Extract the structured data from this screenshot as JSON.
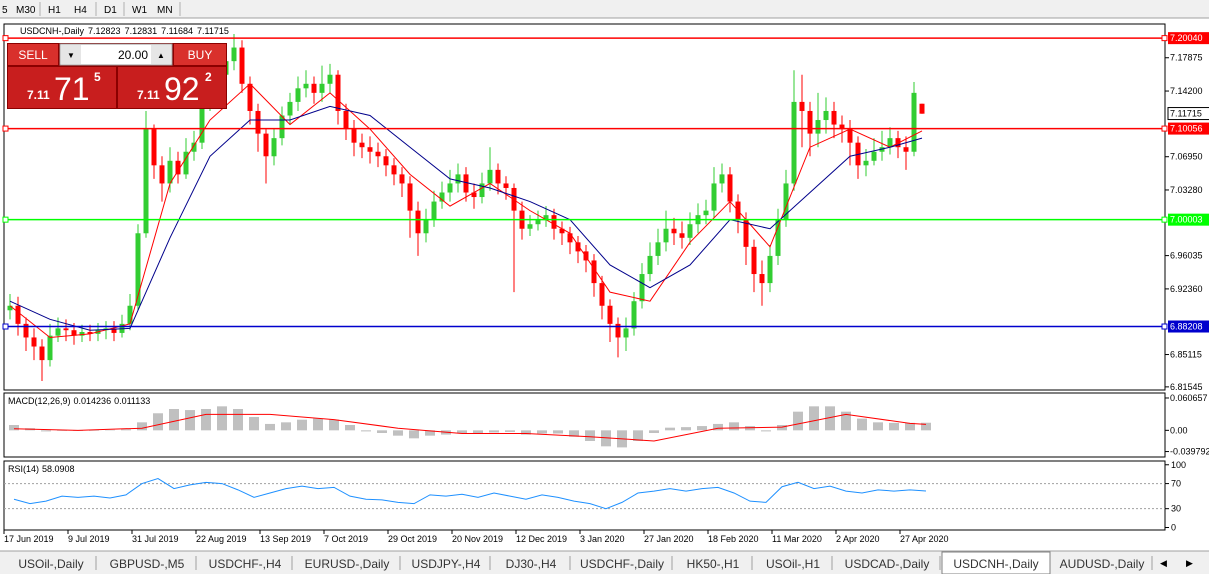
{
  "toolbar": {
    "timeframes": [
      "5",
      "M30",
      "H1",
      "H4",
      "D1",
      "W1",
      "MN"
    ]
  },
  "trade_panel": {
    "sell": "SELL",
    "buy": "BUY",
    "lots": "20.00",
    "sell_price": {
      "big_figure": "7.11",
      "pips": "71",
      "fraction": "5"
    },
    "buy_price": {
      "big_figure": "7.11",
      "pips": "92",
      "fraction": "2"
    }
  },
  "chart_data": {
    "type": "candlestick",
    "symbol": "USDCNH-,Daily",
    "ohlc": [
      7.12823,
      7.12831,
      7.11684,
      7.11715
    ],
    "ylim": [
      6.812,
      7.216
    ],
    "yticks": [
      7.17875,
      {
        "value": 7.142,
        "label": "7.14200"
      },
      {
        "value": 7.0695,
        "label": "7.06950"
      },
      {
        "value": 7.0328,
        "label": "7.03280"
      },
      6.96035,
      {
        "value": 6.9236,
        "label": "6.92360"
      },
      6.85115,
      6.81545
    ],
    "x_labels": [
      "17 Jun 2019",
      "9 Jul 2019",
      "31 Jul 2019",
      "22 Aug 2019",
      "13 Sep 2019",
      "7 Oct 2019",
      "29 Oct 2019",
      "20 Nov 2019",
      "12 Dec 2019",
      "3 Jan 2020",
      "27 Jan 2020",
      "18 Feb 2020",
      "11 Mar 2020",
      "2 Apr 2020",
      "27 Apr 2020"
    ],
    "levels": [
      {
        "value": 7.2004,
        "label": "7.20040",
        "color": "#ff0000"
      },
      {
        "value": 7.10056,
        "color": "#ff0000"
      },
      {
        "value": 7.00003,
        "color": "#00ff00"
      },
      {
        "value": 6.88208,
        "color": "#0000cd"
      }
    ],
    "current_price": 7.11715,
    "up_color": "#32cd32",
    "down_color": "#ff0000",
    "open": [
      6.9,
      6.905,
      6.885,
      6.87,
      6.86,
      6.845,
      6.872,
      6.88,
      6.878,
      6.872,
      6.876,
      6.874,
      6.878,
      6.88,
      6.875,
      6.885,
      6.905,
      6.985,
      7.1,
      7.06,
      7.04,
      7.065,
      7.05,
      7.075,
      7.085,
      7.13,
      7.15,
      7.16,
      7.175,
      7.19,
      7.15,
      7.12,
      7.095,
      7.07,
      7.09,
      7.115,
      7.13,
      7.145,
      7.15,
      7.14,
      7.15,
      7.16,
      7.12,
      7.1,
      7.085,
      7.08,
      7.075,
      7.07,
      7.06,
      7.05,
      7.04,
      7.01,
      6.985,
      7.0,
      7.02,
      7.03,
      7.04,
      7.05,
      7.03,
      7.025,
      7.04,
      7.055,
      7.04,
      7.035,
      7.01,
      6.99,
      6.995,
      7.0,
      7.005,
      6.99,
      6.985,
      6.975,
      6.965,
      6.955,
      6.93,
      6.905,
      6.885,
      6.87,
      6.88,
      6.91,
      6.94,
      6.96,
      6.975,
      6.99,
      6.985,
      6.98,
      6.995,
      7.005,
      7.01,
      7.04,
      7.05,
      7.02,
      7.0,
      6.97,
      6.94,
      6.93,
      6.96,
      7.0,
      7.04,
      7.13,
      7.12,
      7.095,
      7.11,
      7.12,
      7.105,
      7.1,
      7.085,
      7.06,
      7.065,
      7.075,
      7.08,
      7.09,
      7.08,
      7.075,
      7.128
    ],
    "high": [
      6.918,
      6.915,
      6.892,
      6.88,
      6.868,
      6.885,
      6.892,
      6.89,
      6.886,
      6.884,
      6.884,
      6.886,
      6.888,
      6.888,
      6.895,
      6.918,
      6.995,
      7.12,
      7.105,
      7.07,
      7.08,
      7.075,
      7.09,
      7.098,
      7.14,
      7.165,
      7.175,
      7.19,
      7.205,
      7.198,
      7.158,
      7.128,
      7.1,
      7.1,
      7.125,
      7.14,
      7.158,
      7.165,
      7.158,
      7.17,
      7.172,
      7.165,
      7.128,
      7.11,
      7.095,
      7.092,
      7.085,
      7.078,
      7.068,
      7.058,
      7.048,
      7.02,
      7.012,
      7.032,
      7.042,
      7.055,
      7.062,
      7.058,
      7.04,
      7.052,
      7.08,
      7.062,
      7.048,
      7.04,
      7.02,
      7.005,
      7.01,
      7.015,
      7.012,
      6.998,
      6.992,
      6.982,
      6.972,
      6.962,
      6.938,
      6.912,
      6.892,
      6.892,
      6.92,
      6.952,
      6.975,
      6.99,
      7.01,
      7.002,
      6.998,
      7.008,
      7.018,
      7.022,
      7.058,
      7.062,
      7.058,
      7.028,
      7.008,
      6.978,
      6.955,
      6.972,
      7.012,
      7.055,
      7.165,
      7.16,
      7.13,
      7.14,
      7.135,
      7.13,
      7.115,
      7.11,
      7.092,
      7.078,
      7.09,
      7.098,
      7.102,
      7.098,
      7.092,
      7.152,
      7.128
    ],
    "low": [
      6.89,
      6.872,
      6.855,
      6.845,
      6.822,
      6.838,
      6.865,
      6.866,
      6.862,
      6.865,
      6.866,
      6.866,
      6.868,
      6.866,
      6.87,
      6.878,
      6.9,
      6.98,
      7.045,
      7.02,
      7.03,
      7.04,
      7.045,
      7.065,
      7.078,
      7.12,
      7.14,
      7.15,
      7.165,
      7.14,
      7.105,
      7.075,
      7.04,
      7.06,
      7.082,
      7.105,
      7.12,
      7.135,
      7.128,
      7.13,
      7.14,
      7.105,
      7.088,
      7.07,
      7.068,
      7.062,
      7.058,
      7.048,
      7.038,
      7.025,
      6.98,
      6.96,
      6.975,
      6.992,
      7.012,
      7.02,
      7.03,
      7.02,
      7.012,
      7.018,
      7.032,
      7.028,
      7.022,
      6.92,
      6.978,
      6.982,
      6.988,
      6.992,
      6.978,
      6.972,
      6.962,
      6.952,
      6.942,
      6.915,
      6.89,
      6.865,
      6.848,
      6.855,
      6.872,
      6.902,
      6.932,
      6.95,
      6.965,
      6.972,
      6.968,
      6.972,
      6.985,
      6.995,
      7.002,
      7.03,
      7.008,
      6.985,
      6.95,
      6.92,
      6.905,
      6.92,
      6.95,
      6.992,
      7.032,
      7.08,
      7.07,
      7.08,
      7.095,
      7.09,
      7.085,
      7.06,
      7.045,
      7.048,
      7.06,
      7.065,
      7.072,
      7.068,
      7.055,
      7.07,
      7.117
    ],
    "close": [
      6.905,
      6.885,
      6.87,
      6.86,
      6.845,
      6.872,
      6.88,
      6.878,
      6.872,
      6.876,
      6.874,
      6.878,
      6.88,
      6.875,
      6.885,
      6.905,
      6.985,
      7.1,
      7.06,
      7.04,
      7.065,
      7.05,
      7.075,
      7.085,
      7.13,
      7.15,
      7.16,
      7.175,
      7.19,
      7.15,
      7.12,
      7.095,
      7.07,
      7.09,
      7.115,
      7.13,
      7.145,
      7.15,
      7.14,
      7.15,
      7.16,
      7.12,
      7.1,
      7.085,
      7.08,
      7.075,
      7.07,
      7.06,
      7.05,
      7.04,
      7.01,
      6.985,
      7.0,
      7.02,
      7.03,
      7.04,
      7.05,
      7.03,
      7.025,
      7.04,
      7.055,
      7.04,
      7.035,
      7.01,
      6.99,
      6.995,
      7.0,
      7.005,
      6.99,
      6.985,
      6.975,
      6.965,
      6.955,
      6.93,
      6.905,
      6.885,
      6.87,
      6.88,
      6.91,
      6.94,
      6.96,
      6.975,
      6.99,
      6.985,
      6.98,
      6.995,
      7.005,
      7.01,
      7.04,
      7.05,
      7.02,
      7.0,
      6.97,
      6.94,
      6.93,
      6.96,
      7.0,
      7.04,
      7.13,
      7.12,
      7.095,
      7.11,
      7.12,
      7.105,
      7.1,
      7.085,
      7.06,
      7.065,
      7.075,
      7.08,
      7.09,
      7.08,
      7.075,
      7.14,
      7.117
    ],
    "ma_fast": {
      "color": "#ff0000",
      "values": [
        6.905,
        6.87,
        6.874,
        6.885,
        7.04,
        7.11,
        7.15,
        7.105,
        7.14,
        7.1,
        7.05,
        7.015,
        7.04,
        7.01,
        6.985,
        6.92,
        6.91,
        6.975,
        7.02,
        6.97,
        7.08,
        7.1,
        7.08,
        7.098
      ]
    },
    "ma_slow": {
      "color": "#00008b",
      "values": [
        6.91,
        6.89,
        6.878,
        6.88,
        6.98,
        7.07,
        7.11,
        7.11,
        7.125,
        7.115,
        7.08,
        7.045,
        7.035,
        7.02,
        7.0,
        6.95,
        6.925,
        6.95,
        7.0,
        6.99,
        7.03,
        7.07,
        7.08,
        7.09
      ]
    },
    "macd": {
      "name": "MACD(12,26,9)",
      "main": 0.014236,
      "signal_last": 0.011133,
      "ylim": [
        -0.05,
        0.07
      ],
      "yticks": [
        0.060657,
        {
          "value": 0,
          "label": "0.00"
        },
        -0.039792
      ],
      "hist_color": "#c0c0c0",
      "signal_color": "#ff0000",
      "histogram": [
        0.01,
        0.004,
        -0.002,
        0.0,
        -0.001,
        0.0,
        0.001,
        0.002,
        0.015,
        0.032,
        0.04,
        0.038,
        0.04,
        0.045,
        0.04,
        0.025,
        0.012,
        0.015,
        0.02,
        0.022,
        0.02,
        0.01,
        -0.002,
        -0.005,
        -0.01,
        -0.015,
        -0.01,
        -0.008,
        -0.006,
        -0.005,
        -0.004,
        -0.003,
        -0.008,
        -0.006,
        -0.006,
        -0.012,
        -0.02,
        -0.03,
        -0.032,
        -0.02,
        -0.005,
        0.005,
        0.006,
        0.008,
        0.012,
        0.015,
        0.008,
        -0.002,
        0.01,
        0.035,
        0.045,
        0.045,
        0.035,
        0.022,
        0.015,
        0.014,
        0.014,
        0.014236
      ],
      "signal": [
        0.003,
        0.0,
        0.004,
        0.03,
        0.03,
        0.02,
        0.004,
        -0.006,
        -0.006,
        -0.012,
        -0.02,
        0.004,
        0.006,
        0.03,
        0.013,
        0.011133
      ]
    },
    "rsi": {
      "name": "RSI(14)",
      "last": 58.0908,
      "color": "#1e90ff",
      "ylim": [
        -4,
        106
      ],
      "yticks": [
        100,
        70,
        30,
        0
      ],
      "levels": [
        70,
        30
      ],
      "values": [
        45,
        38,
        42,
        50,
        48,
        50,
        47,
        52,
        70,
        78,
        62,
        68,
        72,
        70,
        60,
        48,
        55,
        62,
        66,
        62,
        64,
        50,
        45,
        44,
        40,
        38,
        52,
        50,
        53,
        48,
        55,
        50,
        45,
        52,
        48,
        42,
        38,
        30,
        40,
        55,
        58,
        62,
        58,
        62,
        64,
        55,
        42,
        40,
        65,
        72,
        62,
        66,
        58,
        55,
        60,
        58,
        60,
        58.0908
      ]
    }
  },
  "tabs": {
    "items": [
      "USOil-,Daily",
      "GBPUSD-,M5",
      "USDCHF-,H4",
      "EURUSD-,Daily",
      "USDJPY-,H4",
      "DJ30-,H4",
      "USDCHF-,Daily",
      "HK50-,H1",
      "USOil-,H1",
      "USDCAD-,Daily",
      "USDCNH-,Daily",
      "AUDUSD-,Daily"
    ],
    "active": 10
  }
}
